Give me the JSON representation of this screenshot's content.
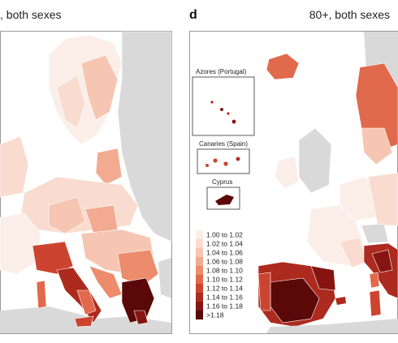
{
  "panel_c": {
    "title": ", both sexes"
  },
  "panel_d": {
    "letter": "d",
    "title": "80+, both sexes"
  },
  "insets": {
    "azores": "Azores (Portugal)",
    "canaries": "Canaries (Spain)",
    "cyprus": "Cyprus"
  },
  "legend": {
    "items": [
      {
        "label": "1.00 to 1.02",
        "color": "#fbeee8"
      },
      {
        "label": "1.02 to 1.04",
        "color": "#f9dccf"
      },
      {
        "label": "1.04 to 1.06",
        "color": "#f6c6b2"
      },
      {
        "label": "1.06 to 1.08",
        "color": "#f2ab91"
      },
      {
        "label": "1.08 to 1.10",
        "color": "#ec8c6c"
      },
      {
        "label": "1.10 to 1.12",
        "color": "#e1694c"
      },
      {
        "label": "1.12 to 1.14",
        "color": "#cc4430"
      },
      {
        "label": "1.14 to 1.16",
        "color": "#ad2a1e"
      },
      {
        "label": "1.16 to 1.18",
        "color": "#861512"
      },
      {
        "label": ">1.18",
        "color": "#5a0808"
      }
    ]
  },
  "colors": {
    "land_nodata": "#d9d9d9",
    "sea": "#ffffff",
    "border": "#ffffff"
  }
}
